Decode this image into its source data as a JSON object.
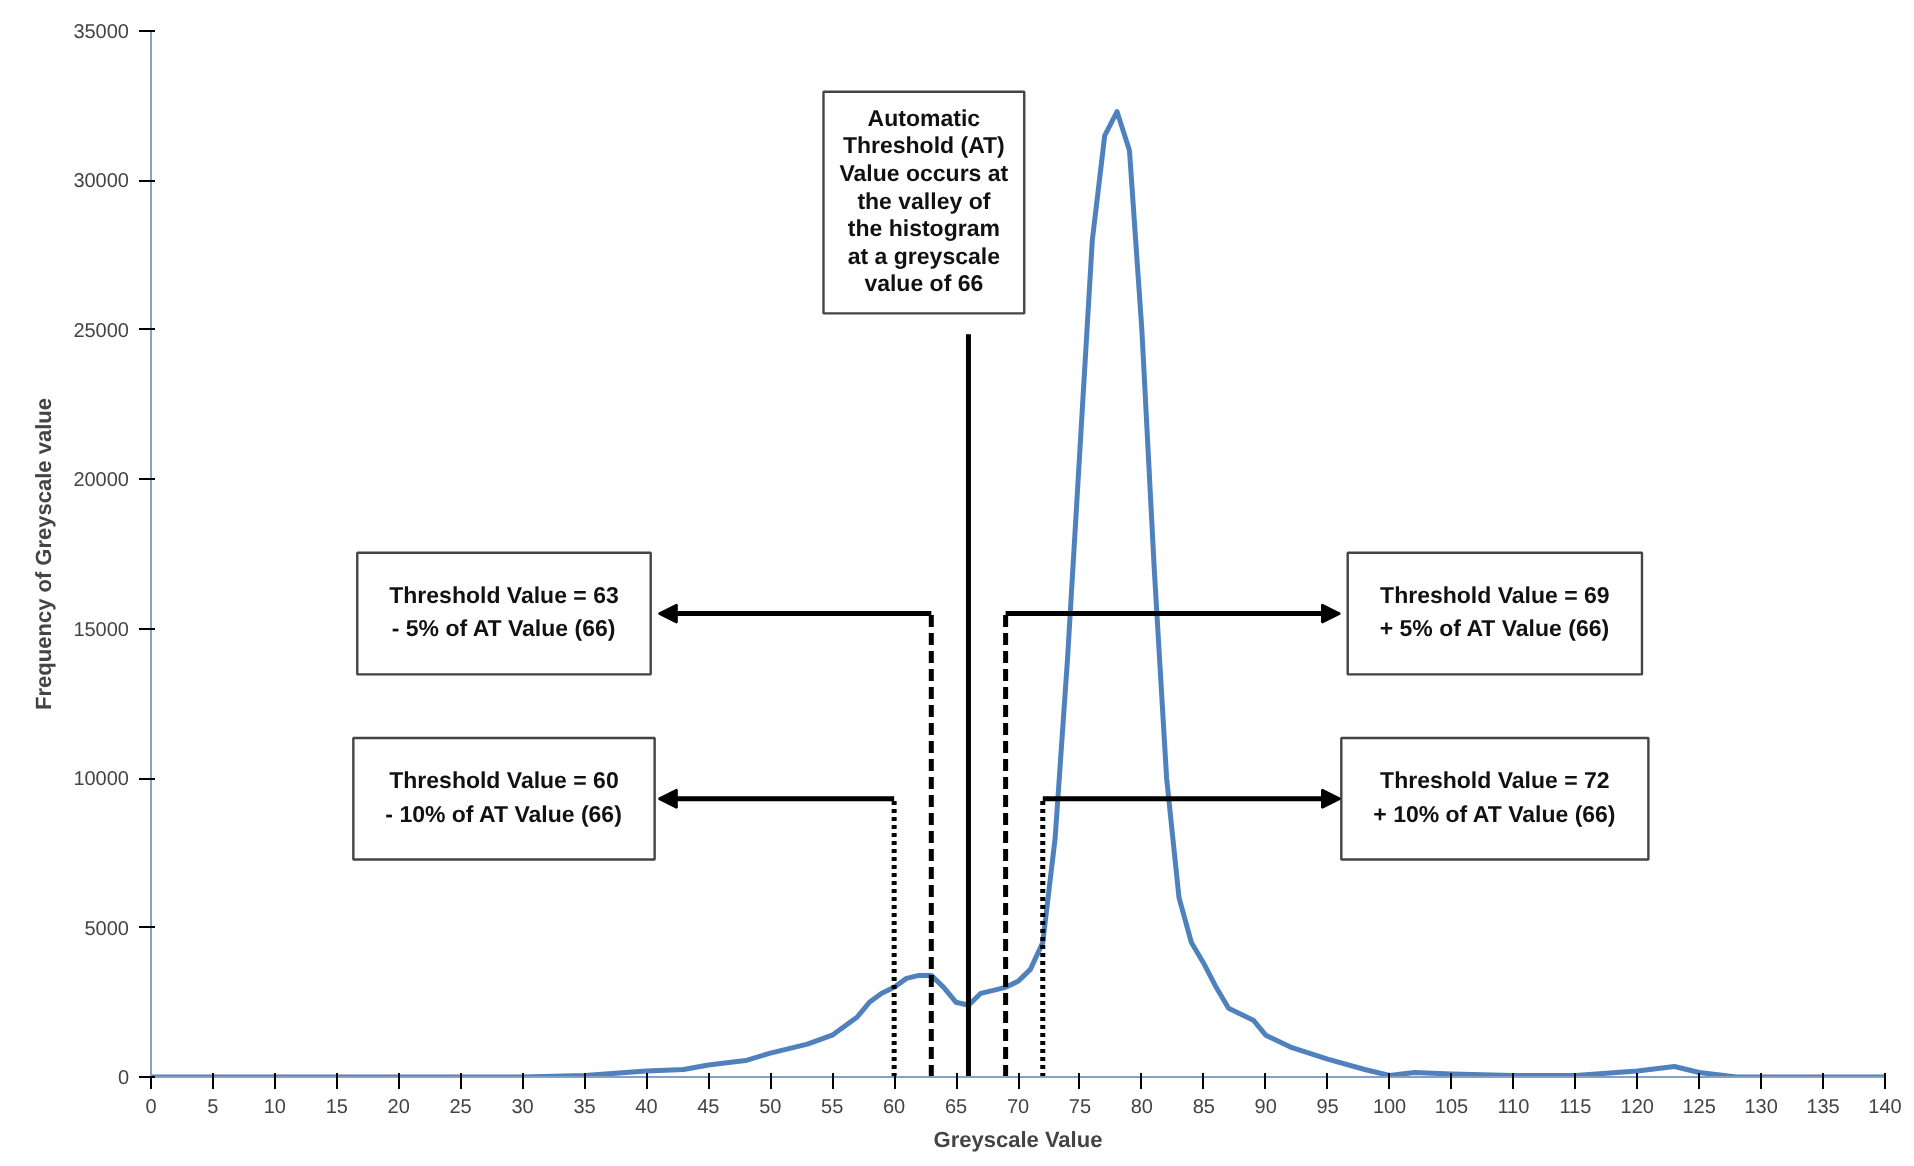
{
  "chart_data": {
    "type": "line",
    "xlabel": "Greyscale Value",
    "ylabel": "Frequency of Greyscale value",
    "x": [
      0,
      5,
      10,
      15,
      20,
      25,
      30,
      35,
      40,
      43,
      45,
      48,
      50,
      53,
      55,
      57,
      58,
      59,
      60,
      61,
      62,
      63,
      64,
      65,
      66,
      67,
      68,
      69,
      70,
      71,
      72,
      73,
      74,
      75,
      76,
      77,
      78,
      79,
      80,
      81,
      82,
      83,
      84,
      85,
      86,
      87,
      88,
      89,
      90,
      92,
      95,
      98,
      100,
      102,
      105,
      110,
      115,
      120,
      123,
      125,
      128,
      130,
      135,
      140
    ],
    "series": [
      {
        "color": "#4f81bd",
        "values": [
          0,
          0,
          0,
          0,
          0,
          0,
          0,
          50,
          200,
          250,
          400,
          550,
          800,
          1100,
          1400,
          2000,
          2500,
          2800,
          3000,
          3300,
          3400,
          3400,
          3000,
          2500,
          2400,
          2800,
          2900,
          3000,
          3200,
          3600,
          4500,
          8000,
          14000,
          21000,
          28000,
          31500,
          32300,
          31000,
          25000,
          17000,
          10000,
          6000,
          4500,
          3800,
          3000,
          2300,
          2100,
          1900,
          1400,
          1000,
          600,
          250,
          50,
          150,
          100,
          50,
          50,
          200,
          350,
          150,
          0,
          0,
          0,
          0
        ]
      }
    ],
    "xlim": [
      0,
      140
    ],
    "xticks": [
      0,
      5,
      10,
      15,
      20,
      25,
      30,
      35,
      40,
      45,
      50,
      55,
      60,
      65,
      70,
      75,
      80,
      85,
      90,
      95,
      100,
      105,
      110,
      115,
      120,
      125,
      130,
      135,
      140
    ],
    "ylim": [
      0,
      35000
    ],
    "yticks": [
      0,
      5000,
      10000,
      15000,
      20000,
      25000,
      30000,
      35000
    ],
    "grid": false,
    "marker": "none",
    "line_style": "solid",
    "ref_lines": [
      {
        "axis": "x",
        "value": 66,
        "color": "#000000",
        "line_style": "solid"
      },
      {
        "axis": "x",
        "value": 63,
        "color": "#000000",
        "line_style": "dashed"
      },
      {
        "axis": "x",
        "value": 69,
        "color": "#000000",
        "line_style": "dashed"
      },
      {
        "axis": "x",
        "value": 60,
        "color": "#000000",
        "line_style": "dotted"
      },
      {
        "axis": "x",
        "value": 72,
        "color": "#000000",
        "line_style": "dotted"
      }
    ],
    "annotations": [
      "Automatic\nThreshold (AT)\nValue occurs at\nthe valley of\nthe histogram\nat a greyscale\nvalue of 66",
      "Threshold Value = 63\n- 5% of AT Value (66)",
      "Threshold Value = 69\n+ 5% of AT Value (66)",
      "Threshold Value = 60\n- 10% of AT Value (66)",
      "Threshold Value = 72\n+ 10% of AT Value (66)"
    ]
  }
}
